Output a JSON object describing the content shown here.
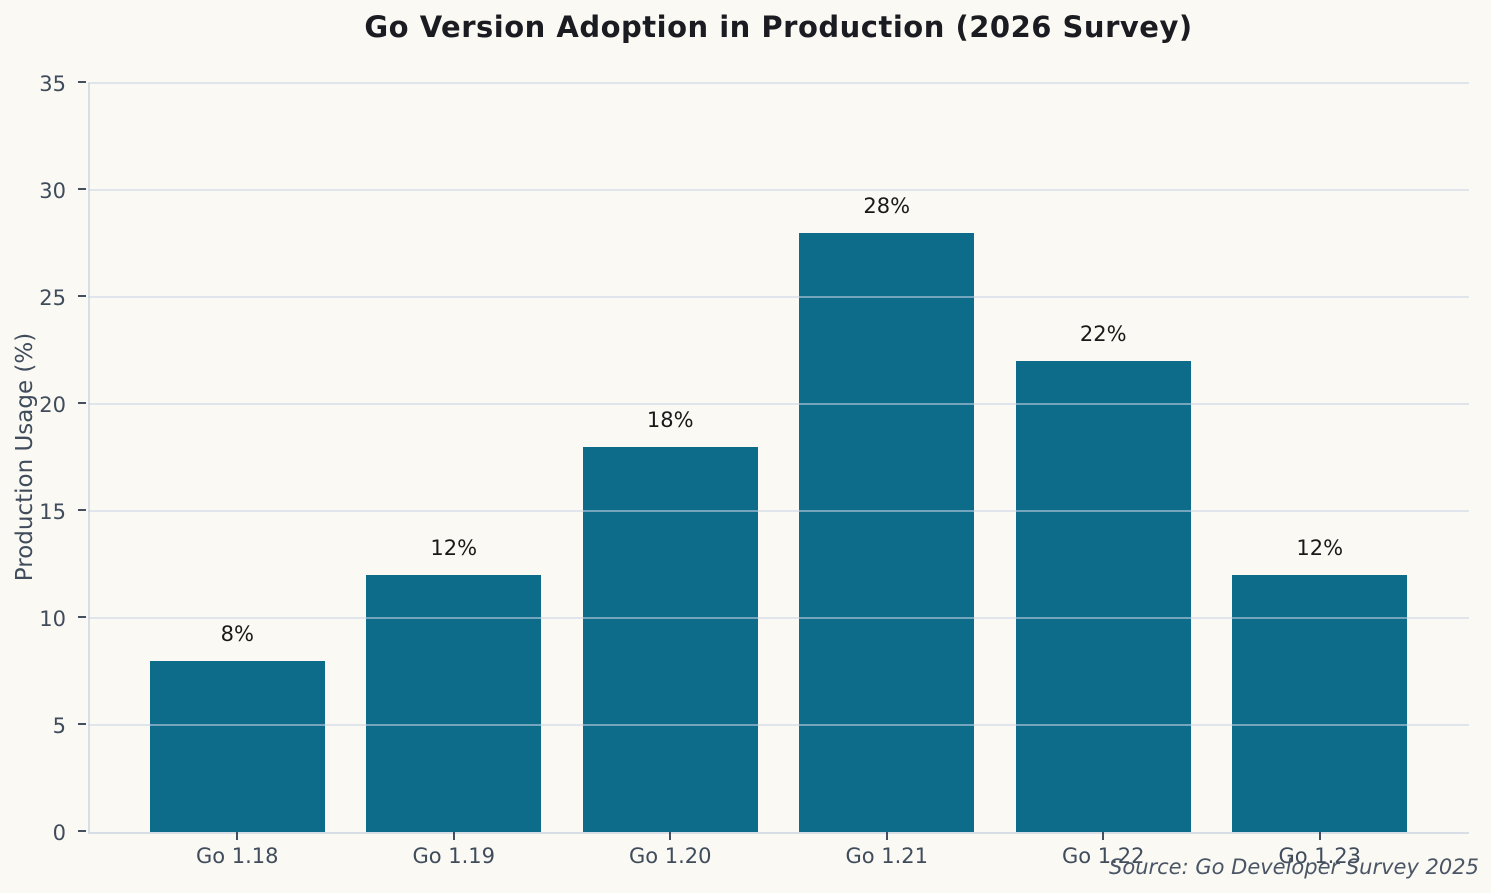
{
  "chart_data": {
    "type": "bar",
    "title": "Go Version Adoption in Production (2026 Survey)",
    "ylabel": "Production Usage (%)",
    "xlabel": "",
    "categories": [
      "Go 1.18",
      "Go 1.19",
      "Go 1.20",
      "Go 1.21",
      "Go 1.22",
      "Go 1.23"
    ],
    "values": [
      8,
      12,
      18,
      28,
      22,
      12
    ],
    "bar_labels": [
      "8%",
      "12%",
      "18%",
      "28%",
      "22%",
      "12%"
    ],
    "ylim": [
      0,
      35
    ],
    "yticks": [
      0,
      5,
      10,
      15,
      20,
      25,
      30,
      35
    ],
    "grid": "horizontal gridlines drawn above bars",
    "legend_position": "none",
    "source_note": "Source: Go Developer Survey 2025",
    "colors": {
      "background": "#faf9f3",
      "bar": "#0d6c89",
      "grid": "rgba(203,214,229,0.55)",
      "spine": "#d8dee5",
      "tick_mark": "#44505f",
      "tick_text": "#404c5c",
      "title_text": "#1b1b22",
      "value_label_text": "#191919",
      "source_text": "#4a5666"
    }
  }
}
